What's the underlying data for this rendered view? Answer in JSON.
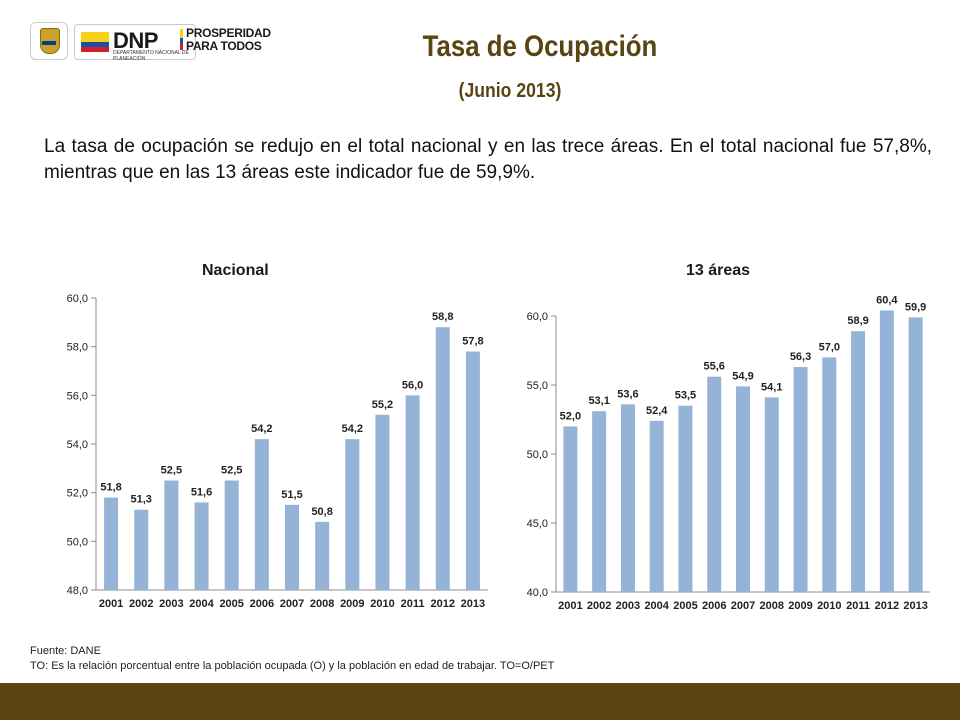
{
  "logos": {
    "crest_icon": "colombia-crest-icon",
    "dnp_text": "DNP",
    "dnp_sub": "DEPARTAMENTO NACIONAL DE PLANEACIÓN",
    "prosperidad_line1": "PROSPERIDAD",
    "prosperidad_line2": "PARA TODOS"
  },
  "header": {
    "title": "Tasa de Ocupación",
    "subtitle": "(Junio 2013)"
  },
  "intro": "La tasa de ocupación se redujo en el total nacional y en las trece áreas. En el total nacional fue 57,8%, mientras que en las 13 áreas este indicador fue de 59,9%.",
  "colors": {
    "bar": "#95b3d7",
    "brand_brown": "#5a4512",
    "axis": "#8c8c8c"
  },
  "chart_data": [
    {
      "type": "bar",
      "title": "Nacional",
      "categories": [
        "2001",
        "2002",
        "2003",
        "2004",
        "2005",
        "2006",
        "2007",
        "2008",
        "2009",
        "2010",
        "2011",
        "2012",
        "2013"
      ],
      "values": [
        51.8,
        51.3,
        52.5,
        51.6,
        52.5,
        54.2,
        51.5,
        50.8,
        54.2,
        55.2,
        56.0,
        58.8,
        57.8
      ],
      "labels": [
        "51,8",
        "51,3",
        "52,5",
        "51,6",
        "52,5",
        "54,2",
        "51,5",
        "50,8",
        "54,2",
        "55,2",
        "56,0",
        "58,8",
        "57,8"
      ],
      "ylim": [
        48,
        60
      ],
      "yticks": [
        48,
        50,
        52,
        54,
        56,
        58,
        60
      ],
      "ytick_labels": [
        "48,0",
        "50,0",
        "52,0",
        "54,0",
        "56,0",
        "58,0",
        "60,0"
      ],
      "grid": false
    },
    {
      "type": "bar",
      "title": "13 áreas",
      "categories": [
        "2001",
        "2002",
        "2003",
        "2004",
        "2005",
        "2006",
        "2007",
        "2008",
        "2009",
        "2010",
        "2011",
        "2012",
        "2013"
      ],
      "values": [
        52.0,
        53.1,
        53.6,
        52.4,
        53.5,
        55.6,
        54.9,
        54.1,
        56.3,
        57.0,
        58.9,
        60.4,
        59.9
      ],
      "labels": [
        "52,0",
        "53,1",
        "53,6",
        "52,4",
        "53,5",
        "55,6",
        "54,9",
        "54,1",
        "56,3",
        "57,0",
        "58,9",
        "60,4",
        "59,9"
      ],
      "ylim": [
        40,
        60
      ],
      "yticks": [
        40,
        45,
        50,
        55,
        60
      ],
      "ytick_labels": [
        "40,0",
        "45,0",
        "50,0",
        "55,0",
        "60,0"
      ],
      "grid": false
    }
  ],
  "notes": {
    "source": "Fuente: DANE",
    "definition": "TO: Es la relación porcentual entre la población ocupada (O) y la población  en edad de trabajar. TO=O/PET"
  }
}
